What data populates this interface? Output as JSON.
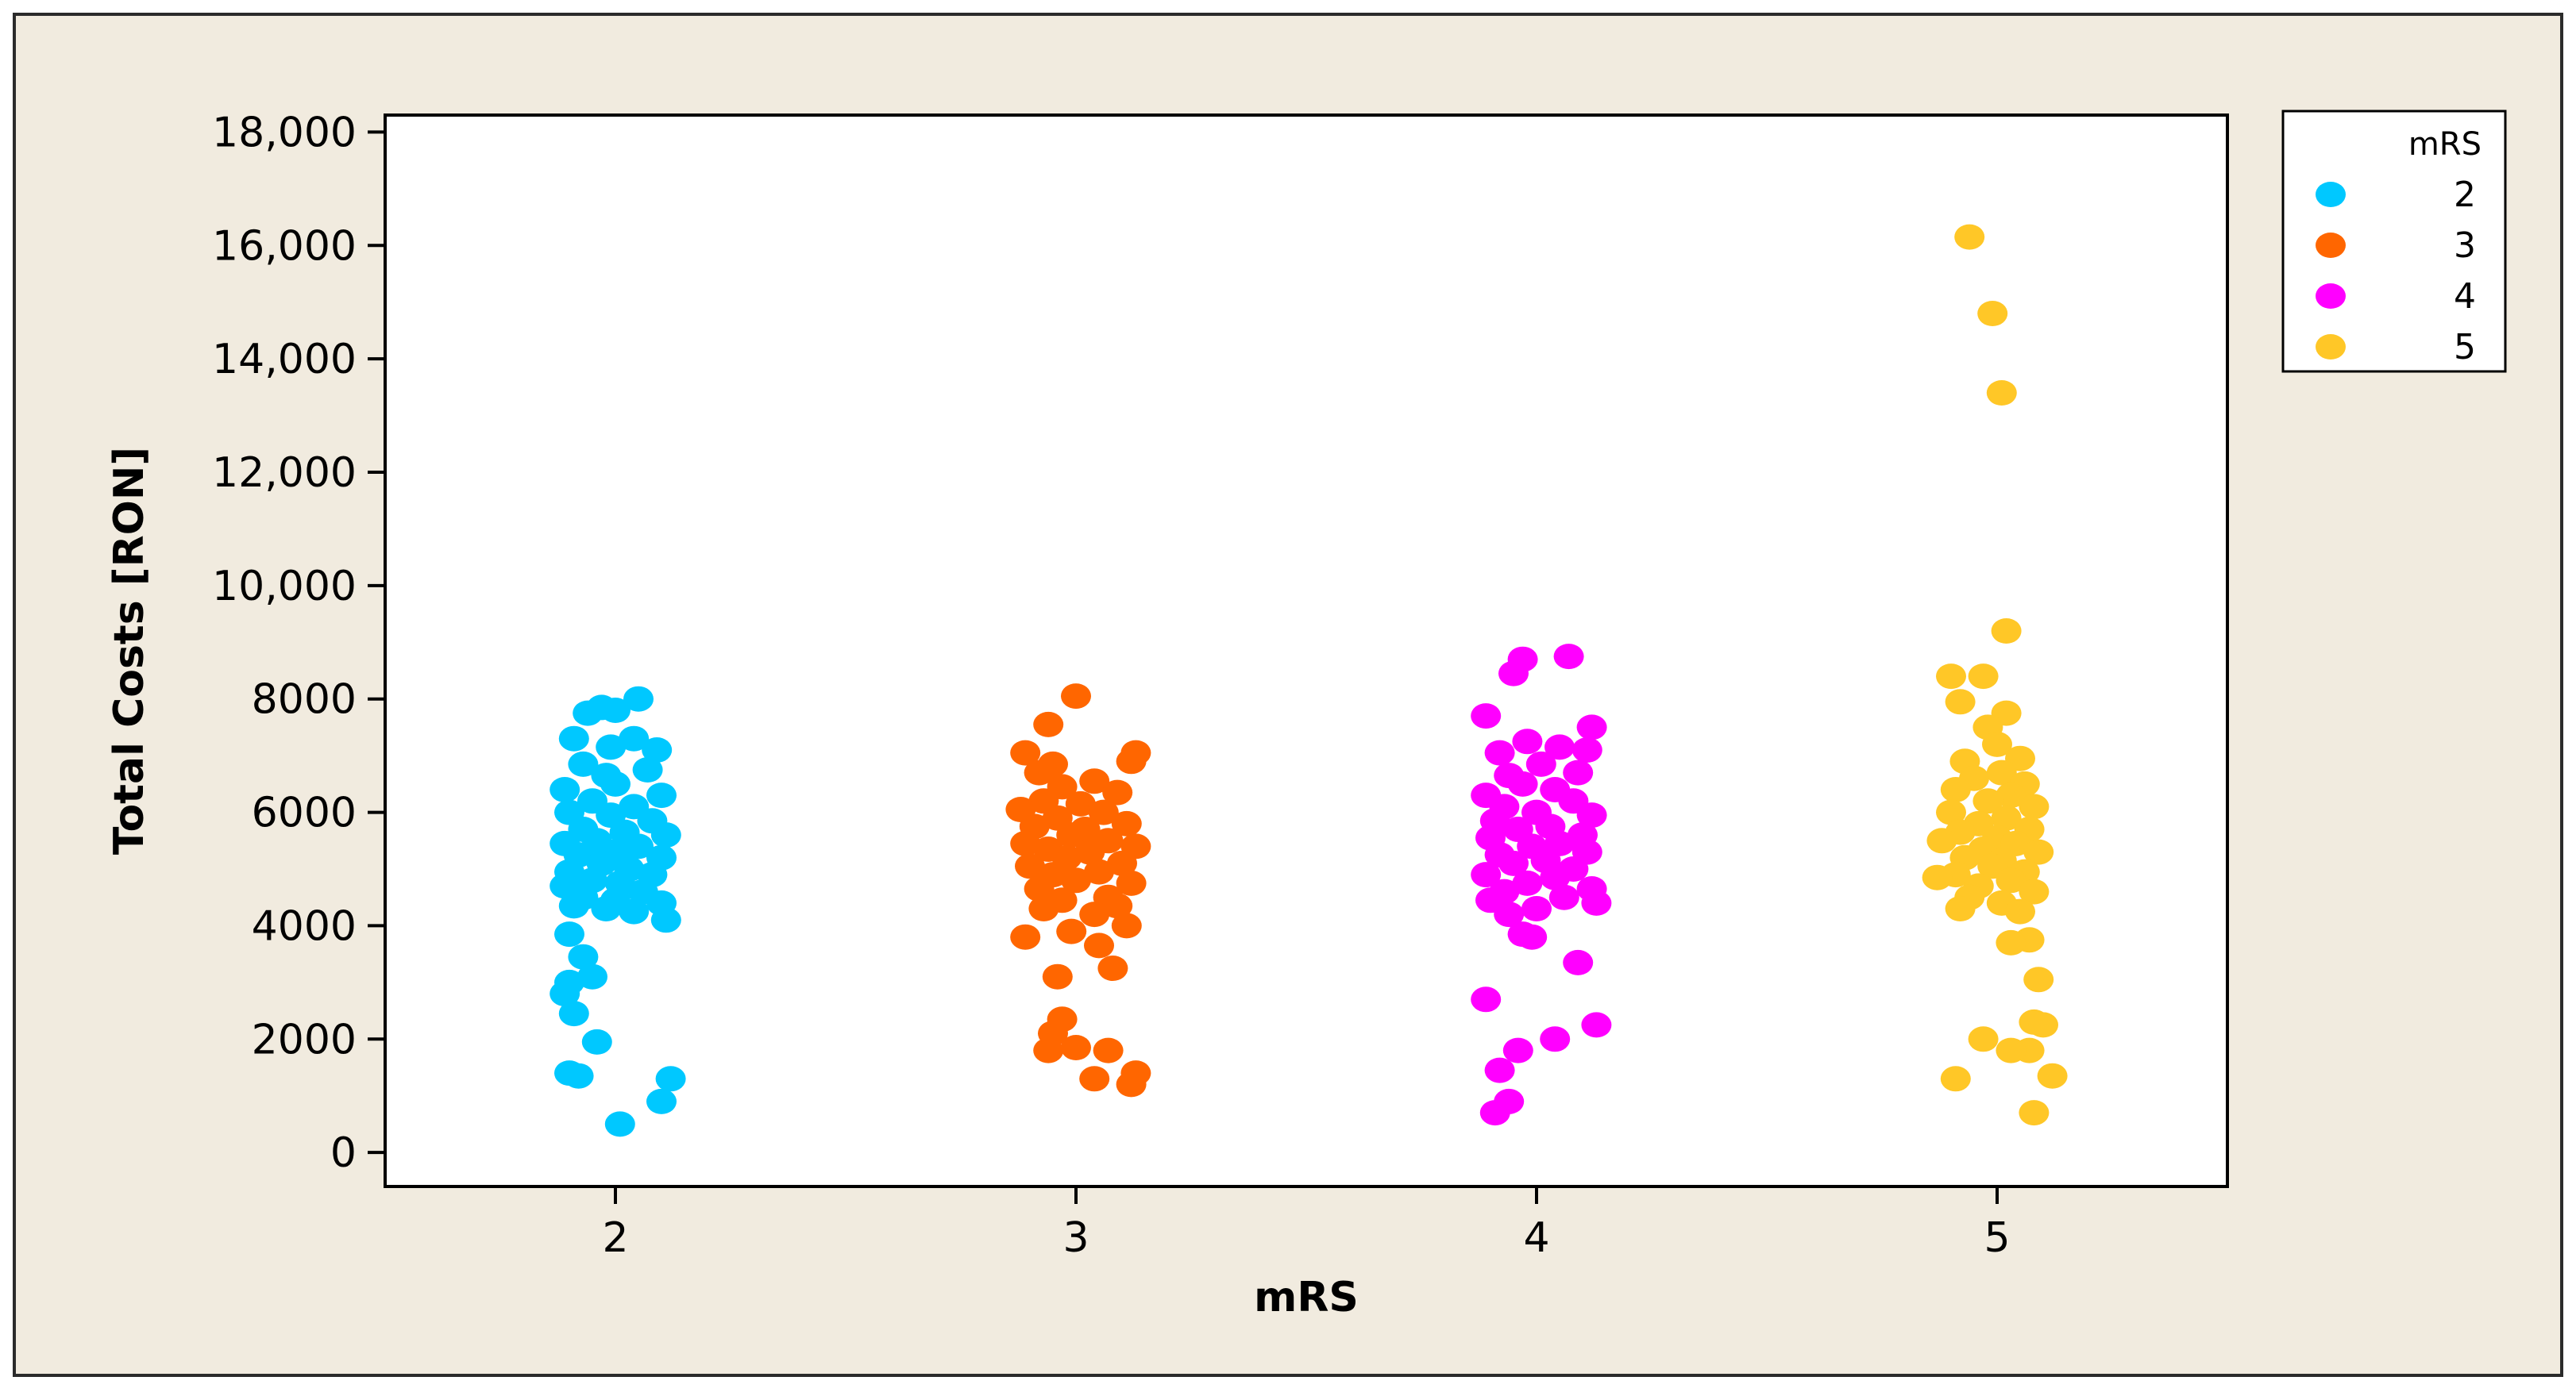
{
  "chart_data": {
    "type": "scatter",
    "xlabel": "mRS",
    "ylabel": "Total Costs [RON]",
    "categories": [
      "2",
      "3",
      "4",
      "5"
    ],
    "ylim": [
      -600,
      18300
    ],
    "yticks": [
      0,
      2000,
      4000,
      6000,
      8000,
      10000,
      12000,
      14000,
      16000,
      18000
    ],
    "ytick_labels": [
      "0",
      "2000",
      "4000",
      "6000",
      "8000",
      "10,000",
      "12,000",
      "14,000",
      "16,000",
      "18,000"
    ],
    "legend": {
      "title": "mRS",
      "position": "right",
      "entries": [
        "2",
        "3",
        "4",
        "5"
      ]
    },
    "colors": {
      "2": "#00C8FF",
      "3": "#FF6600",
      "4": "#FF00FF",
      "5": "#FFC727",
      "background": "#F1EBDF",
      "plot": "#FFFFFF"
    },
    "series": [
      {
        "name": "2",
        "points": [
          [
            1.94,
            7750
          ],
          [
            1.97,
            7850
          ],
          [
            2.0,
            7800
          ],
          [
            2.05,
            8000
          ],
          [
            1.91,
            7300
          ],
          [
            2.04,
            7300
          ],
          [
            1.99,
            7150
          ],
          [
            2.09,
            7100
          ],
          [
            2.07,
            6750
          ],
          [
            1.93,
            6850
          ],
          [
            1.98,
            6650
          ],
          [
            1.89,
            6400
          ],
          [
            2.0,
            6500
          ],
          [
            2.1,
            6300
          ],
          [
            1.95,
            6200
          ],
          [
            2.04,
            6100
          ],
          [
            1.9,
            6000
          ],
          [
            1.99,
            5950
          ],
          [
            2.08,
            5850
          ],
          [
            1.93,
            5700
          ],
          [
            2.02,
            5650
          ],
          [
            2.11,
            5600
          ],
          [
            1.96,
            5500
          ],
          [
            1.89,
            5450
          ],
          [
            2.05,
            5400
          ],
          [
            2.0,
            5300
          ],
          [
            1.92,
            5250
          ],
          [
            2.1,
            5200
          ],
          [
            1.97,
            5100
          ],
          [
            2.03,
            5000
          ],
          [
            1.9,
            4950
          ],
          [
            2.08,
            4900
          ],
          [
            1.95,
            4800
          ],
          [
            2.01,
            4750
          ],
          [
            1.89,
            4700
          ],
          [
            2.06,
            4600
          ],
          [
            1.93,
            4500
          ],
          [
            2.0,
            4450
          ],
          [
            2.1,
            4400
          ],
          [
            1.98,
            4300
          ],
          [
            1.91,
            4350
          ],
          [
            2.04,
            4250
          ],
          [
            2.11,
            4100
          ],
          [
            1.9,
            3850
          ],
          [
            1.93,
            3450
          ],
          [
            1.95,
            3100
          ],
          [
            1.9,
            3000
          ],
          [
            1.89,
            2800
          ],
          [
            1.91,
            2450
          ],
          [
            1.96,
            1950
          ],
          [
            1.92,
            1350
          ],
          [
            1.9,
            1400
          ],
          [
            2.12,
            1300
          ],
          [
            2.1,
            900
          ],
          [
            2.01,
            500
          ]
        ]
      },
      {
        "name": "3",
        "points": [
          [
            3.0,
            8050
          ],
          [
            2.94,
            7550
          ],
          [
            2.89,
            7050
          ],
          [
            3.13,
            7050
          ],
          [
            2.95,
            6850
          ],
          [
            3.12,
            6900
          ],
          [
            2.92,
            6700
          ],
          [
            3.04,
            6550
          ],
          [
            2.97,
            6450
          ],
          [
            3.09,
            6350
          ],
          [
            2.93,
            6200
          ],
          [
            3.01,
            6150
          ],
          [
            2.88,
            6050
          ],
          [
            3.06,
            6000
          ],
          [
            2.96,
            5900
          ],
          [
            3.11,
            5800
          ],
          [
            2.91,
            5750
          ],
          [
            3.02,
            5700
          ],
          [
            2.99,
            5600
          ],
          [
            3.07,
            5500
          ],
          [
            2.89,
            5450
          ],
          [
            3.13,
            5400
          ],
          [
            2.94,
            5350
          ],
          [
            3.03,
            5300
          ],
          [
            2.98,
            5200
          ],
          [
            3.1,
            5100
          ],
          [
            2.9,
            5050
          ],
          [
            3.05,
            4950
          ],
          [
            2.95,
            4900
          ],
          [
            3.0,
            4800
          ],
          [
            3.12,
            4750
          ],
          [
            2.92,
            4650
          ],
          [
            3.07,
            4500
          ],
          [
            2.97,
            4450
          ],
          [
            3.09,
            4350
          ],
          [
            2.93,
            4300
          ],
          [
            3.04,
            4200
          ],
          [
            3.11,
            4000
          ],
          [
            2.99,
            3900
          ],
          [
            2.89,
            3800
          ],
          [
            3.05,
            3650
          ],
          [
            3.08,
            3250
          ],
          [
            2.96,
            3100
          ],
          [
            2.97,
            2350
          ],
          [
            2.95,
            2100
          ],
          [
            3.0,
            1850
          ],
          [
            3.07,
            1800
          ],
          [
            2.94,
            1800
          ],
          [
            3.13,
            1400
          ],
          [
            3.12,
            1200
          ],
          [
            3.04,
            1300
          ]
        ]
      },
      {
        "name": "4",
        "points": [
          [
            4.07,
            8750
          ],
          [
            3.97,
            8700
          ],
          [
            3.95,
            8450
          ],
          [
            3.89,
            7700
          ],
          [
            4.12,
            7500
          ],
          [
            3.98,
            7250
          ],
          [
            4.05,
            7150
          ],
          [
            4.11,
            7100
          ],
          [
            3.92,
            7050
          ],
          [
            4.01,
            6850
          ],
          [
            4.09,
            6700
          ],
          [
            3.94,
            6650
          ],
          [
            3.97,
            6500
          ],
          [
            4.04,
            6400
          ],
          [
            3.89,
            6300
          ],
          [
            4.08,
            6200
          ],
          [
            3.93,
            6100
          ],
          [
            4.0,
            6000
          ],
          [
            4.12,
            5950
          ],
          [
            3.91,
            5850
          ],
          [
            4.03,
            5750
          ],
          [
            3.96,
            5700
          ],
          [
            4.1,
            5600
          ],
          [
            3.9,
            5550
          ],
          [
            4.05,
            5450
          ],
          [
            3.99,
            5400
          ],
          [
            4.11,
            5300
          ],
          [
            3.92,
            5250
          ],
          [
            4.02,
            5150
          ],
          [
            3.95,
            5100
          ],
          [
            4.08,
            5000
          ],
          [
            3.89,
            4900
          ],
          [
            4.04,
            4850
          ],
          [
            3.98,
            4750
          ],
          [
            4.12,
            4650
          ],
          [
            3.93,
            4600
          ],
          [
            4.06,
            4500
          ],
          [
            3.9,
            4450
          ],
          [
            4.0,
            4300
          ],
          [
            4.13,
            4400
          ],
          [
            3.94,
            4200
          ],
          [
            3.97,
            3850
          ],
          [
            3.99,
            3800
          ],
          [
            4.09,
            3350
          ],
          [
            3.89,
            2700
          ],
          [
            4.13,
            2250
          ],
          [
            4.04,
            2000
          ],
          [
            3.96,
            1800
          ],
          [
            3.92,
            1450
          ],
          [
            3.94,
            900
          ],
          [
            3.91,
            700
          ]
        ]
      },
      {
        "name": "5",
        "points": [
          [
            4.94,
            16150
          ],
          [
            4.99,
            14800
          ],
          [
            5.01,
            13400
          ],
          [
            5.02,
            9200
          ],
          [
            4.9,
            8400
          ],
          [
            4.97,
            8400
          ],
          [
            4.92,
            7950
          ],
          [
            5.02,
            7750
          ],
          [
            4.98,
            7500
          ],
          [
            5.0,
            7200
          ],
          [
            5.05,
            6950
          ],
          [
            4.93,
            6900
          ],
          [
            5.01,
            6700
          ],
          [
            4.95,
            6600
          ],
          [
            5.06,
            6500
          ],
          [
            4.91,
            6400
          ],
          [
            5.03,
            6300
          ],
          [
            4.98,
            6200
          ],
          [
            5.08,
            6100
          ],
          [
            4.9,
            6000
          ],
          [
            5.02,
            5900
          ],
          [
            4.96,
            5800
          ],
          [
            5.07,
            5700
          ],
          [
            4.92,
            5650
          ],
          [
            5.0,
            5550
          ],
          [
            4.88,
            5500
          ],
          [
            5.04,
            5450
          ],
          [
            4.97,
            5350
          ],
          [
            5.09,
            5300
          ],
          [
            4.93,
            5200
          ],
          [
            5.01,
            5150
          ],
          [
            4.99,
            5050
          ],
          [
            5.06,
            4950
          ],
          [
            4.91,
            4900
          ],
          [
            5.03,
            4800
          ],
          [
            4.87,
            4850
          ],
          [
            4.96,
            4700
          ],
          [
            5.08,
            4600
          ],
          [
            4.94,
            4500
          ],
          [
            5.01,
            4400
          ],
          [
            4.92,
            4300
          ],
          [
            5.05,
            4250
          ],
          [
            5.07,
            3750
          ],
          [
            5.03,
            3700
          ],
          [
            5.09,
            3050
          ],
          [
            5.08,
            2300
          ],
          [
            5.1,
            2250
          ],
          [
            4.97,
            2000
          ],
          [
            5.07,
            1800
          ],
          [
            5.03,
            1800
          ],
          [
            4.91,
            1300
          ],
          [
            5.12,
            1350
          ],
          [
            5.08,
            700
          ]
        ]
      }
    ]
  }
}
